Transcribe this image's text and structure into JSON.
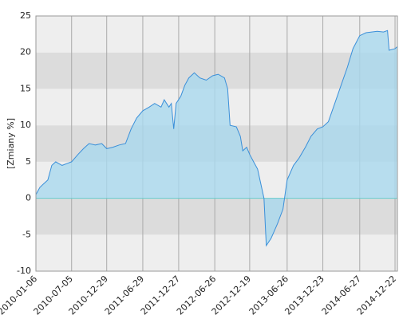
{
  "chart_data": {
    "type": "area",
    "y_label": "[Zmiany %]",
    "color": "#3a8fd9",
    "fill": "#a9d8ee",
    "x": [
      "2010-01-06",
      "2010-01-26",
      "2010-02-15",
      "2010-03-07",
      "2010-03-27",
      "2010-04-16",
      "2010-05-18",
      "2010-06-15",
      "2010-07-05",
      "2010-08-06",
      "2010-09-03",
      "2010-10-01",
      "2010-11-02",
      "2010-12-04",
      "2010-12-29",
      "2011-01-29",
      "2011-03-02",
      "2011-04-03",
      "2011-05-01",
      "2011-05-29",
      "2011-06-29",
      "2011-07-31",
      "2011-08-28",
      "2011-09-29",
      "2011-10-15",
      "2011-11-08",
      "2011-11-20",
      "2011-12-02",
      "2011-12-14",
      "2012-01-07",
      "2012-01-27",
      "2012-02-16",
      "2012-03-15",
      "2012-04-12",
      "2012-05-14",
      "2012-06-15",
      "2012-07-13",
      "2012-08-14",
      "2012-08-30",
      "2012-09-11",
      "2012-10-13",
      "2012-11-02",
      "2012-11-14",
      "2012-12-04",
      "2012-12-19",
      "2013-01-08",
      "2013-01-28",
      "2013-02-17",
      "2013-03-01",
      "2013-03-13",
      "2013-04-06",
      "2013-05-08",
      "2013-06-05",
      "2013-06-26",
      "2013-07-28",
      "2013-08-25",
      "2013-09-26",
      "2013-10-24",
      "2013-11-25",
      "2013-12-23",
      "2014-01-20",
      "2014-02-21",
      "2014-03-25",
      "2014-04-26",
      "2014-05-24",
      "2014-06-27",
      "2014-07-29",
      "2014-08-26",
      "2014-09-23",
      "2014-10-25",
      "2014-11-14",
      "2014-11-22",
      "2014-12-22",
      "2015-01-03"
    ],
    "values": [
      0.5,
      1.5,
      2,
      2.5,
      4.5,
      5,
      4.5,
      4.8,
      5,
      6,
      6.8,
      7.5,
      7.3,
      7.5,
      6.8,
      7,
      7.3,
      7.5,
      9.5,
      11,
      12,
      12.5,
      13,
      12.5,
      13.5,
      12.5,
      13,
      9.5,
      13,
      14,
      15.5,
      16.5,
      17.2,
      16.5,
      16.2,
      16.8,
      17,
      16.5,
      15,
      10,
      9.8,
      8.5,
      6.5,
      7,
      6,
      5,
      4,
      1.5,
      0,
      -6.5,
      -5.5,
      -3.5,
      -1.5,
      2.5,
      4.5,
      5.5,
      7,
      8.5,
      9.5,
      9.8,
      10.5,
      13,
      15.5,
      18,
      20.5,
      22.3,
      22.7,
      22.8,
      22.9,
      22.8,
      23,
      20.3,
      20.5,
      20.8
    ],
    "xlim": [
      "2010-01-06",
      "2015-01-03"
    ],
    "xticks": [
      "2010-01-06",
      "2010-07-05",
      "2010-12-29",
      "2011-06-29",
      "2011-12-27",
      "2012-06-26",
      "2012-12-19",
      "2013-06-26",
      "2013-12-23",
      "2014-06-27",
      "2014-12-22"
    ],
    "ylim": [
      -10,
      25
    ],
    "yticks": [
      -10,
      -5,
      0,
      5,
      10,
      15,
      20,
      25
    ],
    "grid": true
  }
}
